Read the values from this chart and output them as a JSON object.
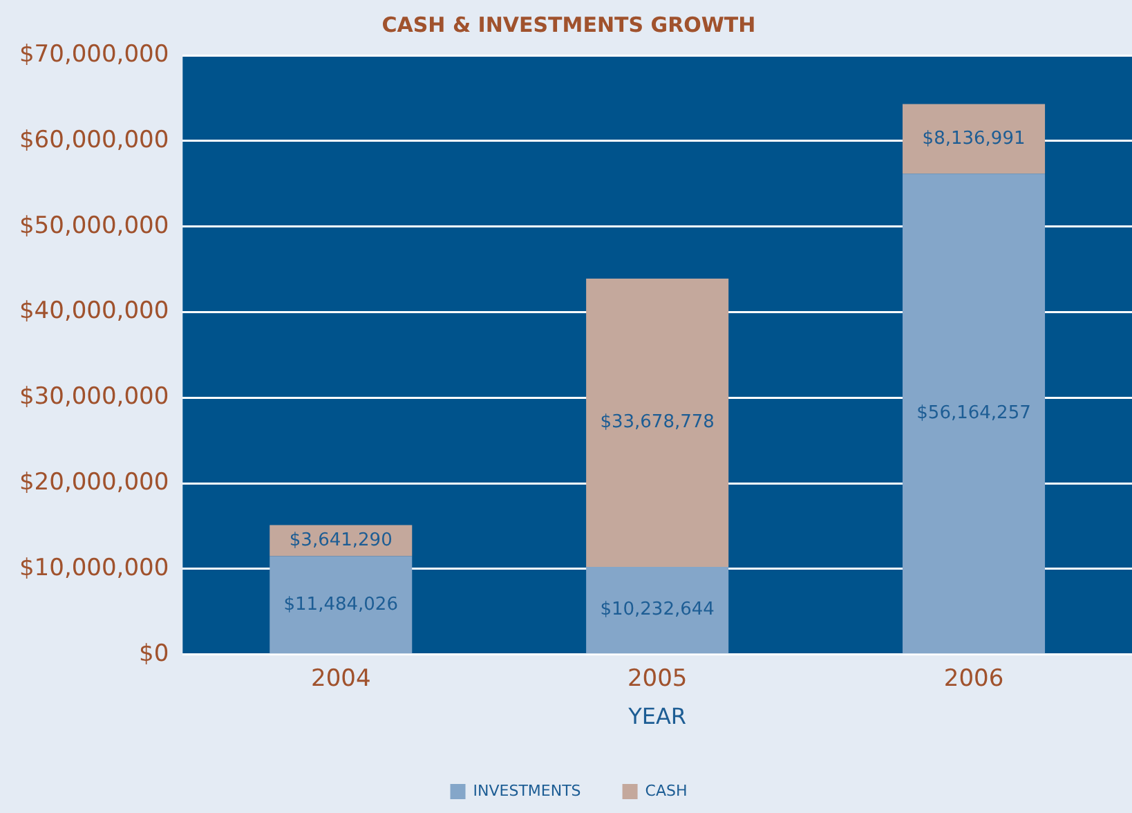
{
  "chart_data": {
    "type": "bar",
    "title": "CASH & INVESTMENTS GROWTH",
    "xlabel": "YEAR",
    "categories": [
      "2004",
      "2005",
      "2006"
    ],
    "stacked": true,
    "series": [
      {
        "name": "INVESTMENTS",
        "color": "#84a6c9",
        "values": [
          11484026,
          10232644,
          56164257
        ],
        "value_labels": [
          "$11,484,026",
          "$10,232,644",
          "$56,164,257"
        ]
      },
      {
        "name": "CASH",
        "color": "#c4a89c",
        "values": [
          3641290,
          33678778,
          8136991
        ],
        "value_labels": [
          "$3,641,290",
          "$33,678,778",
          "$8,136,991"
        ]
      }
    ],
    "ylim": [
      0,
      70000000
    ],
    "yticks": [
      {
        "value": 0,
        "label": "$0"
      },
      {
        "value": 10000000,
        "label": "$10,000,000"
      },
      {
        "value": 20000000,
        "label": "$20,000,000"
      },
      {
        "value": 30000000,
        "label": "$30,000,000"
      },
      {
        "value": 40000000,
        "label": "$40,000,000"
      },
      {
        "value": 50000000,
        "label": "$50,000,000"
      },
      {
        "value": 60000000,
        "label": "$60,000,000"
      },
      {
        "value": 70000000,
        "label": "$70,000,000"
      }
    ],
    "grid": "y",
    "legend": "bottom"
  }
}
